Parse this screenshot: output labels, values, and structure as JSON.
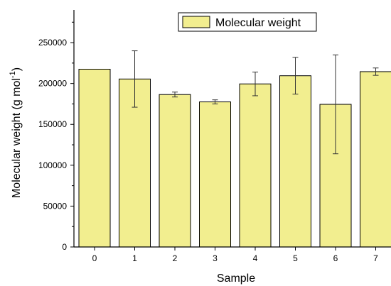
{
  "chart_data": {
    "type": "bar",
    "categories": [
      "0",
      "1",
      "2",
      "3",
      "4",
      "5",
      "6",
      "7"
    ],
    "series": [
      {
        "name": "Molecular weight",
        "values": [
          217500,
          205500,
          186500,
          177500,
          199500,
          209500,
          174500,
          214500
        ],
        "error": [
          0,
          34500,
          3000,
          2500,
          14500,
          22500,
          60500,
          4500
        ]
      }
    ],
    "xlabel": "Sample",
    "ylabel": {
      "main": "Molecular weight (g mol",
      "superscript": "-1",
      "close": ")"
    },
    "ylim": [
      0,
      290000
    ],
    "yticks": [
      "0",
      "50000",
      "100000",
      "150000",
      "200000",
      "250000"
    ],
    "legend_position": "top-center",
    "grid": false,
    "colors": {
      "bar_fill": "#f2ee8f",
      "bar_stroke": "#000000"
    }
  }
}
